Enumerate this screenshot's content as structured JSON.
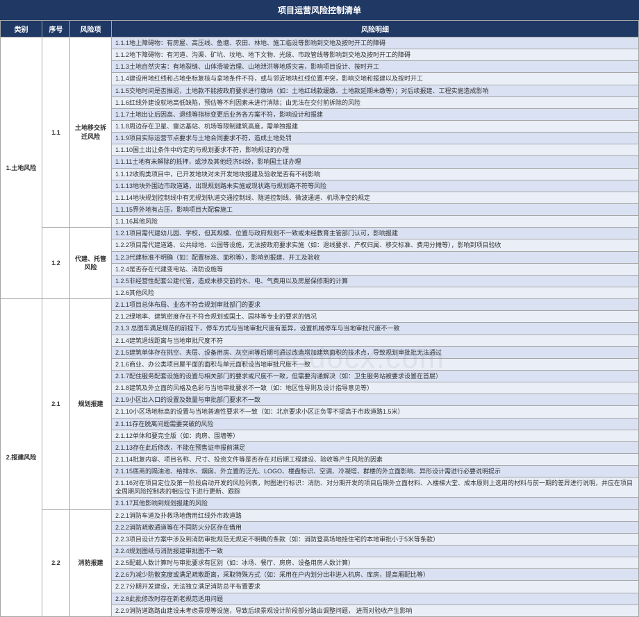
{
  "title": "项目运营风险控制清单",
  "watermark": "www.wodocx.com",
  "headers": [
    "类别",
    "序号",
    "风险项",
    "风险明细"
  ],
  "colors": {
    "header_bg": "#1f3864",
    "header_fg": "#ffffff",
    "border": "#a6a6a6",
    "row_even": "#d9e1f2",
    "row_odd": "#eaeef7"
  },
  "categories": [
    {
      "name": "1.土地风险",
      "sections": [
        {
          "seq": "1.1",
          "risk": "土地移交拆迁风险",
          "details": [
            "1.1.1地上障碍物：有房屋、高压线、鱼塘、农田、林地、施工临设等影响到交地及按时开工的障碍",
            "1.1.2地下障碍物：有河道、沟渠、矿坑、坟地、地下文物、光缆、市政管线等影响到交地及按时开工的障碍",
            "1.1.3土地自然灾害：有地裂缝、山体滑坡治理、山地泄洪等地质灾害，影响项目设计、按时开工",
            "1.1.4建设用地红线和占地坐标复核与拿地条件不符，或与邻近地块红线位置冲突，影响交地和报建以及按时开工",
            "1.1.5交地时间是否推迟，土地款不能按政府要求进行缴纳（如：土地红线款缓缴、土地款延期未缴等）；对后续报建、工程实施造成影响",
            "1.1.6红线外建设就地高低缺陷，预估等不利因素未进行消除；由无法在交付前拆除的风险",
            "1.1.7土地出让后因高、退线等指标变更后业务各方案不符，影响设计和报建",
            "1.1.8周边存在卫星、雷达基站、机场等限制建筑高度，需单独报建",
            "1.1.9项目实际运营节点要求与土地合同要求不符，造成土地处罚",
            "1.1.10国土出让条件中约定的与规划要求不符，影响规证的办理",
            "1.1.11土地有未解除的抵押，或涉及其他经济纠纷，影响国土证办理",
            "1.1.12收购类项目中，已开发地块对未开发地块报建及验收是否有不利影响",
            "1.1.13地块外围边市政道路，出现规划路未实施或现状路与规划路不符等风险",
            "1.1.14地块规划控制线中有无规划轨道交通控制线、隧道控制线、微波通道、机场净空的规定",
            "1.1.15界外地有占压，影响项目大配套施工",
            "1.1.16其他风险"
          ]
        },
        {
          "seq": "1.2",
          "risk": "代建、托管风险",
          "details": [
            "1.2.1项目需代建幼儿园、学校，但其规模、位置与政府规划不一致或未经教育主管部门认可，影响报建",
            "1.2.2项目需代建道路、公共绿地、公园等设施，无法按政府要求实施（如：退线要求、产权归属、移交标准、费用分摊等），影响到项目验收",
            "1.2.3代建标准不明确（如：配置标准、面积等），影响到报建、开工及验收",
            "1.2.4是否存在代建变电站、消防设施等",
            "1.2.5非经营性配套公建代管，造成未移交前的水、电、气费用以及房屋保修期的计算",
            "1.2.6其他风险"
          ]
        }
      ]
    },
    {
      "name": "2.报建风险",
      "sections": [
        {
          "seq": "2.1",
          "risk": "规划报建",
          "details": [
            "2.1.1项目总体布局、业态不符合规划审批部门的要求",
            "2.1.2绿地率、建筑密度存在不符合规划或国土、园林等专业的要求的情况",
            "2.1.3 总图车满足规范的前提下，停车方式与当地审批尺度有差异，设置机械停车与当地审批尺度不一致",
            "2.1.4建筑退线距离与当地审批尺度不符",
            "2.1.5建筑单体存在挑空、夹层、设备用房、灰空间等后期可通过改造增加建筑面积的技术点，导致规划审批批无法通过",
            "2.1.6商业、办公类项目屋平面的面积与单元面积设当地审批尺度不一致",
            "2.1.7配住服务配套设施的设置与相关部门的要求或尺度不一致，但需要沟通解决（如：卫生服务站被要求设置在首层）",
            "2.1.8建筑及外立面的风格及色彩与当地审批要求不一致（如：地区性导则及设计指导意见等）",
            "2.1.9小区出入口的设置及数量与审批部门要求不一致",
            "2.1.10小区场地标高的设置与当地普遍性要求不一致（如：北京要求小区正负零不提高于市政道路1.5米）",
            "2.1.11存在脱离问题需要突破的风险",
            "2.1.12单体和要完全版（如：肉房、围墙等）",
            "2.1.13存在此后修改，不能在预售证申报前满足",
            "2.1.14批复内容、项目名称、尺寸、投资文件等是否存在对后期工程建设、验收等产生风险的因素",
            "2.1.15底商的隔油池、给排水、烟囱、外立置的泛光、LOGO、楼盘标识、空调、冷凝塔、群楼的外立面影响、异形设计需进行必要说明提示",
            "2.1.16对在项目定位及第一阶段启动开发的风险列表，附图进行标识：消防、对分期开发的项目后期外立面材料、入楼梯大堂、成本原则上选用的材料与前一期的差异进行说明，并应在项目全周期风险控制表的相应位下进行更新、跟踪",
            "2.1.17其他影响到规划报建的风险"
          ]
        },
        {
          "seq": "2.2",
          "risk": "消防报建",
          "details": [
            "2.2.1消防车道及扑救场地借用红线外市政道路",
            "2.2.2消防疏散通道等在不同防火分区存在借用",
            "2.2.3项目设计方案中涉及到消防审批规范无规定不明确的条款（如：消防登高场地挂住宅的本地审批小于5米等条款）",
            "2.2.4规划图纸与消防报建审批图不一致",
            "2.2.5配载人数计算时与审批要求有区别（如：冰场、餐厅、房房、设备用房人数计算）",
            "2.2.6为减少防散宽度或满足疏散距离，采取特殊方式（如：采用在户内划分出非进入机房、库房，提高厢配比等）",
            "2.2.7分期开发建设，无法独立满足消防总平布置要求",
            "2.2.8此批修改时存在新老规范适用问题",
            "2.2.9消防道路路由建设未考虑景观等设施，导致后续景观设计阶段部分路由调整问题，      进而对验收产生影响"
          ]
        }
      ]
    }
  ]
}
